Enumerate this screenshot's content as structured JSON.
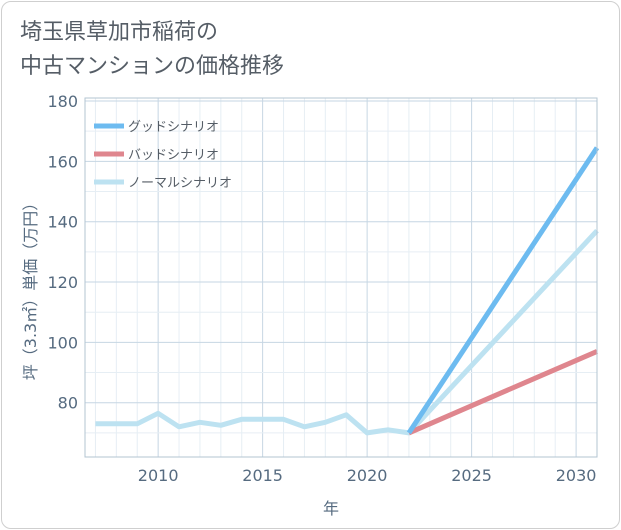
{
  "title_lines": [
    "埼玉県草加市稲荷の",
    "中古マンションの価格推移"
  ],
  "chart_data": {
    "type": "line",
    "title": "埼玉県草加市稲荷の中古マンションの価格推移",
    "xlabel": "年",
    "ylabel": "坪（3.3㎡）単価（万円）",
    "xlim": [
      2006.5,
      2031
    ],
    "ylim": [
      62,
      181
    ],
    "x_ticks": [
      2010,
      2015,
      2020,
      2025,
      2030
    ],
    "y_ticks": [
      80,
      100,
      120,
      140,
      160,
      180
    ],
    "grid": true,
    "legend_position": "top-left",
    "series": [
      {
        "name": "グッドシナリオ",
        "color": "#6dbbf0",
        "x": [
          2022,
          2031
        ],
        "values": [
          70,
          164.5
        ]
      },
      {
        "name": "バッドシナリオ",
        "color": "#df868e",
        "x": [
          2022,
          2031
        ],
        "values": [
          70,
          97
        ]
      },
      {
        "name": "ノーマルシナリオ",
        "color": "#bde2f1",
        "x": [
          2007,
          2008,
          2009,
          2010,
          2011,
          2012,
          2013,
          2014,
          2015,
          2016,
          2017,
          2018,
          2019,
          2020,
          2021,
          2022,
          2031
        ],
        "values": [
          73,
          73,
          73,
          76.5,
          72,
          73.5,
          72.5,
          74.5,
          74.5,
          74.5,
          72,
          73.5,
          76,
          70,
          71,
          70,
          137
        ]
      }
    ]
  }
}
